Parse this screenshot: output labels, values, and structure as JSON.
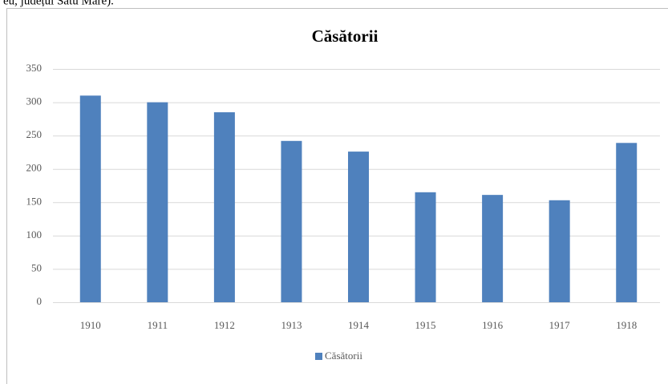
{
  "caption": "eu, județul Satu Mare).",
  "chart_data": {
    "type": "bar",
    "title": "Căsătorii",
    "categories": [
      "1910",
      "1911",
      "1912",
      "1913",
      "1914",
      "1915",
      "1916",
      "1917",
      "1918"
    ],
    "series": [
      {
        "name": "Căsătorii",
        "color": "#4f81bd",
        "values": [
          310,
          300,
          285,
          242,
          226,
          165,
          161,
          153,
          239
        ]
      }
    ],
    "ylim": [
      0,
      350
    ],
    "yticks": [
      0,
      50,
      100,
      150,
      200,
      250,
      300,
      350
    ],
    "grid": true,
    "legend": "bottom"
  }
}
